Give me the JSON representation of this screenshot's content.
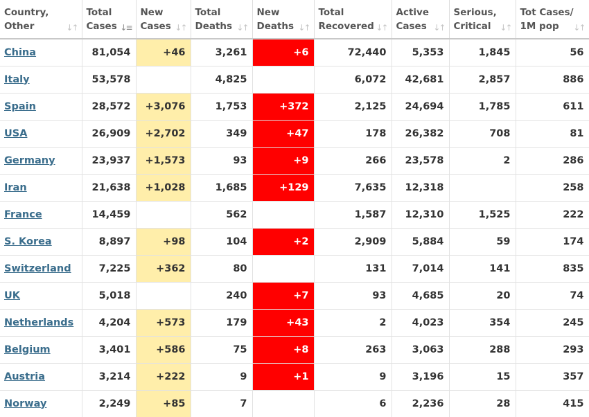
{
  "colors": {
    "new_cases_bg": "#ffeeaa",
    "new_deaths_bg": "#ff0000",
    "link": "#3a6d8c"
  },
  "icons": {
    "sort_default": "sort-arrows-icon",
    "sort_active": "sort-desc-icon"
  },
  "headers": [
    {
      "line1": "Country,",
      "line2": "Other"
    },
    {
      "line1": "Total",
      "line2": "Cases"
    },
    {
      "line1": "New",
      "line2": "Cases"
    },
    {
      "line1": "Total",
      "line2": "Deaths"
    },
    {
      "line1": "New",
      "line2": "Deaths"
    },
    {
      "line1": "Total",
      "line2": "Recovered"
    },
    {
      "line1": "Active",
      "line2": "Cases"
    },
    {
      "line1": "Serious,",
      "line2": "Critical"
    },
    {
      "line1": "Tot Cases/",
      "line2": "1M pop"
    }
  ],
  "rows": [
    {
      "country": "China",
      "total_cases": "81,054",
      "new_cases": "+46",
      "total_deaths": "3,261",
      "new_deaths": "+6",
      "total_recovered": "72,440",
      "active_cases": "5,353",
      "serious_critical": "1,845",
      "tot_cases_per_1m": "56"
    },
    {
      "country": "Italy",
      "total_cases": "53,578",
      "new_cases": "",
      "total_deaths": "4,825",
      "new_deaths": "",
      "total_recovered": "6,072",
      "active_cases": "42,681",
      "serious_critical": "2,857",
      "tot_cases_per_1m": "886"
    },
    {
      "country": "Spain",
      "total_cases": "28,572",
      "new_cases": "+3,076",
      "total_deaths": "1,753",
      "new_deaths": "+372",
      "total_recovered": "2,125",
      "active_cases": "24,694",
      "serious_critical": "1,785",
      "tot_cases_per_1m": "611"
    },
    {
      "country": "USA",
      "total_cases": "26,909",
      "new_cases": "+2,702",
      "total_deaths": "349",
      "new_deaths": "+47",
      "total_recovered": "178",
      "active_cases": "26,382",
      "serious_critical": "708",
      "tot_cases_per_1m": "81"
    },
    {
      "country": "Germany",
      "total_cases": "23,937",
      "new_cases": "+1,573",
      "total_deaths": "93",
      "new_deaths": "+9",
      "total_recovered": "266",
      "active_cases": "23,578",
      "serious_critical": "2",
      "tot_cases_per_1m": "286"
    },
    {
      "country": "Iran",
      "total_cases": "21,638",
      "new_cases": "+1,028",
      "total_deaths": "1,685",
      "new_deaths": "+129",
      "total_recovered": "7,635",
      "active_cases": "12,318",
      "serious_critical": "",
      "tot_cases_per_1m": "258"
    },
    {
      "country": "France",
      "total_cases": "14,459",
      "new_cases": "",
      "total_deaths": "562",
      "new_deaths": "",
      "total_recovered": "1,587",
      "active_cases": "12,310",
      "serious_critical": "1,525",
      "tot_cases_per_1m": "222"
    },
    {
      "country": "S. Korea",
      "total_cases": "8,897",
      "new_cases": "+98",
      "total_deaths": "104",
      "new_deaths": "+2",
      "total_recovered": "2,909",
      "active_cases": "5,884",
      "serious_critical": "59",
      "tot_cases_per_1m": "174"
    },
    {
      "country": "Switzerland",
      "total_cases": "7,225",
      "new_cases": "+362",
      "total_deaths": "80",
      "new_deaths": "",
      "total_recovered": "131",
      "active_cases": "7,014",
      "serious_critical": "141",
      "tot_cases_per_1m": "835"
    },
    {
      "country": "UK",
      "total_cases": "5,018",
      "new_cases": "",
      "total_deaths": "240",
      "new_deaths": "+7",
      "total_recovered": "93",
      "active_cases": "4,685",
      "serious_critical": "20",
      "tot_cases_per_1m": "74"
    },
    {
      "country": "Netherlands",
      "total_cases": "4,204",
      "new_cases": "+573",
      "total_deaths": "179",
      "new_deaths": "+43",
      "total_recovered": "2",
      "active_cases": "4,023",
      "serious_critical": "354",
      "tot_cases_per_1m": "245"
    },
    {
      "country": "Belgium",
      "total_cases": "3,401",
      "new_cases": "+586",
      "total_deaths": "75",
      "new_deaths": "+8",
      "total_recovered": "263",
      "active_cases": "3,063",
      "serious_critical": "288",
      "tot_cases_per_1m": "293"
    },
    {
      "country": "Austria",
      "total_cases": "3,214",
      "new_cases": "+222",
      "total_deaths": "9",
      "new_deaths": "+1",
      "total_recovered": "9",
      "active_cases": "3,196",
      "serious_critical": "15",
      "tot_cases_per_1m": "357"
    },
    {
      "country": "Norway",
      "total_cases": "2,249",
      "new_cases": "+85",
      "total_deaths": "7",
      "new_deaths": "",
      "total_recovered": "6",
      "active_cases": "2,236",
      "serious_critical": "28",
      "tot_cases_per_1m": "415"
    }
  ]
}
